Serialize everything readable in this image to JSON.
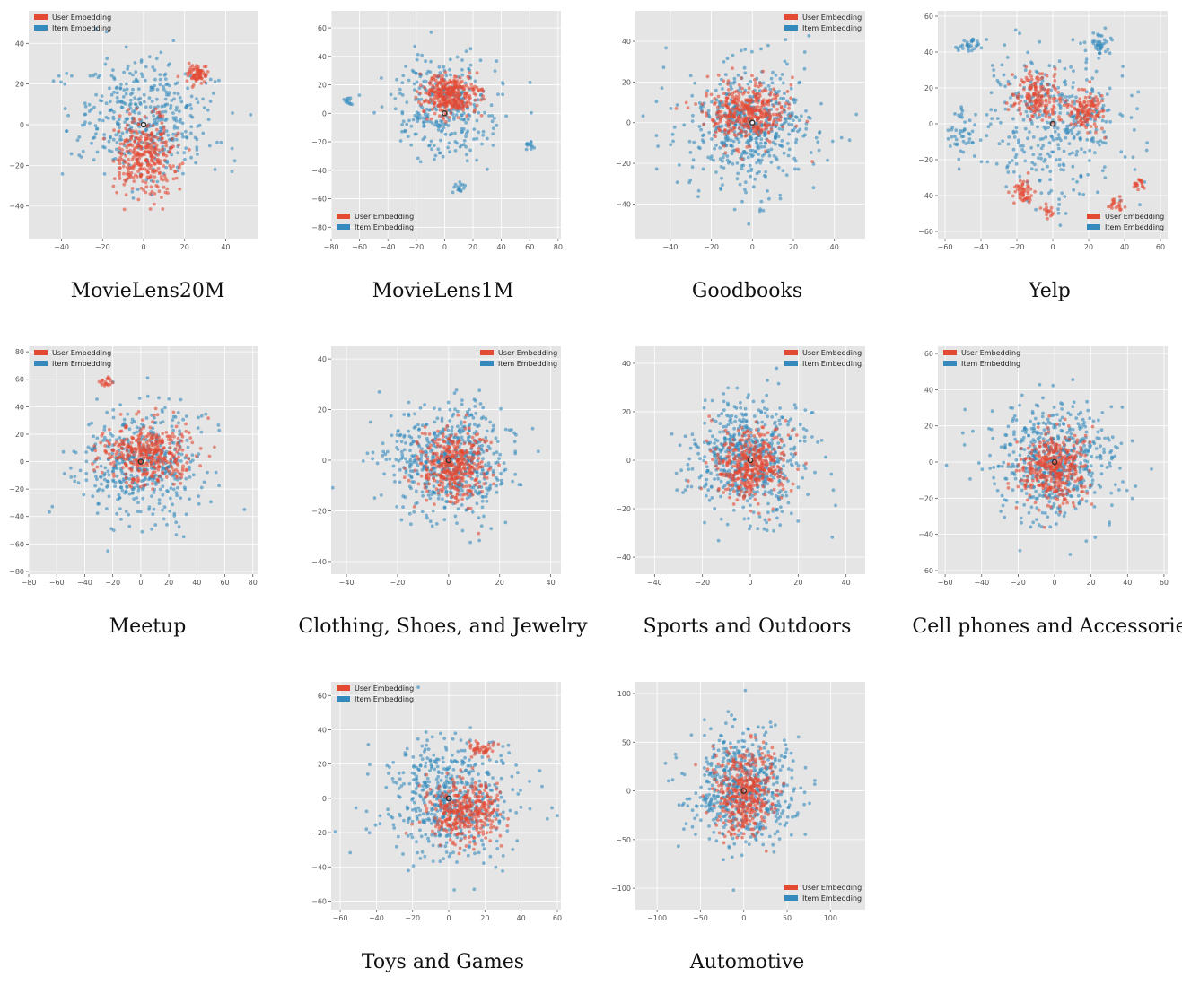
{
  "figure": {
    "colors": {
      "user": "#e24a33",
      "item": "#348abd",
      "background": "#e5e5e5",
      "grid": "#ffffff",
      "center": "#333333"
    },
    "legend_labels": {
      "user": "User Embedding",
      "item": "Item Embedding"
    }
  },
  "chart_data": [
    {
      "type": "scatter",
      "title": "MovieLens20M",
      "xlim": [
        -56,
        56
      ],
      "ylim": [
        -56,
        56
      ],
      "xticks": [
        -40,
        -20,
        0,
        20,
        40
      ],
      "yticks": [
        -40,
        -20,
        0,
        20,
        40
      ],
      "legend": "top-left",
      "grid": true,
      "series": [
        {
          "name": "User Embedding",
          "clusters": [
            {
              "center": [
                1,
                -15
              ],
              "spread": [
                12,
                15
              ],
              "count": 320
            },
            {
              "center": [
                26,
                24
              ],
              "spread": [
                5,
                4
              ],
              "count": 70
            }
          ]
        },
        {
          "name": "Item Embedding",
          "clusters": [
            {
              "center": [
                0,
                3
              ],
              "spread": [
                26,
                24
              ],
              "count": 420
            }
          ]
        }
      ]
    },
    {
      "type": "scatter",
      "title": "MovieLens1M",
      "xlim": [
        -80,
        82
      ],
      "ylim": [
        -88,
        72
      ],
      "xticks": [
        -80,
        -60,
        -40,
        -20,
        0,
        20,
        40,
        60,
        80
      ],
      "yticks": [
        -80,
        -60,
        -40,
        -20,
        0,
        20,
        40,
        60
      ],
      "legend": "bottom-left",
      "grid": true,
      "series": [
        {
          "name": "User Embedding",
          "clusters": [
            {
              "center": [
                3,
                13
              ],
              "spread": [
                15,
                12
              ],
              "count": 330
            }
          ]
        },
        {
          "name": "Item Embedding",
          "clusters": [
            {
              "center": [
                0,
                4
              ],
              "spread": [
                33,
                30
              ],
              "count": 300
            },
            {
              "center": [
                -68,
                8
              ],
              "spread": [
                3,
                3
              ],
              "count": 12
            },
            {
              "center": [
                10,
                -52
              ],
              "spread": [
                4,
                3
              ],
              "count": 15
            },
            {
              "center": [
                60,
                -22
              ],
              "spread": [
                3,
                3
              ],
              "count": 12
            }
          ]
        }
      ]
    },
    {
      "type": "scatter",
      "title": "Goodbooks",
      "xlim": [
        -57,
        55
      ],
      "ylim": [
        -57,
        55
      ],
      "xticks": [
        -40,
        -20,
        0,
        20,
        40
      ],
      "yticks": [
        -40,
        -20,
        0,
        20,
        40
      ],
      "legend": "top-right",
      "grid": true,
      "series": [
        {
          "name": "User Embedding",
          "clusters": [
            {
              "center": [
                -3,
                6
              ],
              "spread": [
                16,
                12
              ],
              "count": 380
            }
          ]
        },
        {
          "name": "Item Embedding",
          "clusters": [
            {
              "center": [
                0,
                -2
              ],
              "spread": [
                26,
                24
              ],
              "count": 520
            }
          ]
        }
      ]
    },
    {
      "type": "scatter",
      "title": "Yelp",
      "xlim": [
        -64,
        64
      ],
      "ylim": [
        -64,
        63
      ],
      "xticks": [
        -60,
        -40,
        -20,
        0,
        20,
        40,
        60
      ],
      "yticks": [
        -60,
        -40,
        -20,
        0,
        20,
        40,
        60
      ],
      "legend": "bottom-right",
      "grid": true,
      "series": [
        {
          "name": "User Embedding",
          "clusters": [
            {
              "center": [
                -8,
                15
              ],
              "spread": [
                10,
                10
              ],
              "count": 160
            },
            {
              "center": [
                18,
                8
              ],
              "spread": [
                8,
                9
              ],
              "count": 120
            },
            {
              "center": [
                -17,
                -38
              ],
              "spread": [
                5,
                5
              ],
              "count": 50
            },
            {
              "center": [
                35,
                -45
              ],
              "spread": [
                3,
                3
              ],
              "count": 20
            },
            {
              "center": [
                -3,
                -50
              ],
              "spread": [
                3,
                3
              ],
              "count": 15
            },
            {
              "center": [
                48,
                -33
              ],
              "spread": [
                3,
                3
              ],
              "count": 18
            }
          ]
        },
        {
          "name": "Item Embedding",
          "clusters": [
            {
              "center": [
                0,
                0
              ],
              "spread": [
                34,
                32
              ],
              "count": 380
            },
            {
              "center": [
                25,
                45
              ],
              "spread": [
                6,
                5
              ],
              "count": 40
            },
            {
              "center": [
                -45,
                44
              ],
              "spread": [
                6,
                3
              ],
              "count": 30
            },
            {
              "center": [
                -52,
                -5
              ],
              "spread": [
                6,
                10
              ],
              "count": 40
            }
          ]
        }
      ]
    },
    {
      "type": "scatter",
      "title": "Meetup",
      "xlim": [
        -80,
        84
      ],
      "ylim": [
        -82,
        84
      ],
      "xticks": [
        -80,
        -60,
        -40,
        -20,
        0,
        20,
        40,
        60,
        80
      ],
      "yticks": [
        -80,
        -60,
        -40,
        -20,
        0,
        20,
        40,
        60,
        80
      ],
      "legend": "top-left",
      "grid": true,
      "series": [
        {
          "name": "User Embedding",
          "clusters": [
            {
              "center": [
                5,
                5
              ],
              "spread": [
                26,
                18
              ],
              "count": 380
            },
            {
              "center": [
                -25,
                58
              ],
              "spread": [
                4,
                3
              ],
              "count": 18
            }
          ]
        },
        {
          "name": "Item Embedding",
          "clusters": [
            {
              "center": [
                0,
                -2
              ],
              "spread": [
                36,
                34
              ],
              "count": 450
            }
          ]
        }
      ]
    },
    {
      "type": "scatter",
      "title": "Clothing, Shoes, and Jewelry",
      "xlim": [
        -46,
        44
      ],
      "ylim": [
        -45,
        45
      ],
      "xticks": [
        -40,
        -20,
        0,
        20,
        40
      ],
      "yticks": [
        -40,
        -20,
        0,
        20,
        40
      ],
      "legend": "top-right",
      "grid": true,
      "series": [
        {
          "name": "User Embedding",
          "clusters": [
            {
              "center": [
                2,
                -2
              ],
              "spread": [
                11,
                11
              ],
              "count": 380
            }
          ]
        },
        {
          "name": "Item Embedding",
          "clusters": [
            {
              "center": [
                0,
                0
              ],
              "spread": [
                20,
                17
              ],
              "count": 560
            }
          ]
        }
      ]
    },
    {
      "type": "scatter",
      "title": "Sports and Outdoors",
      "xlim": [
        -48,
        48
      ],
      "ylim": [
        -47,
        47
      ],
      "xticks": [
        -40,
        -20,
        0,
        20,
        40
      ],
      "yticks": [
        -40,
        -20,
        0,
        20,
        40
      ],
      "legend": "top-right",
      "grid": true,
      "series": [
        {
          "name": "User Embedding",
          "clusters": [
            {
              "center": [
                0,
                -2
              ],
              "spread": [
                12,
                12
              ],
              "count": 380
            }
          ]
        },
        {
          "name": "Item Embedding",
          "clusters": [
            {
              "center": [
                0,
                0
              ],
              "spread": [
                21,
                19
              ],
              "count": 560
            }
          ]
        }
      ]
    },
    {
      "type": "scatter",
      "title": "Cell phones and Accessorie",
      "xlim": [
        -64,
        62
      ],
      "ylim": [
        -62,
        64
      ],
      "xticks": [
        -60,
        -40,
        -20,
        0,
        20,
        40,
        60
      ],
      "yticks": [
        -60,
        -40,
        -20,
        0,
        20,
        40,
        60
      ],
      "legend": "top-left",
      "grid": true,
      "series": [
        {
          "name": "User Embedding",
          "clusters": [
            {
              "center": [
                0,
                -4
              ],
              "spread": [
                15,
                15
              ],
              "count": 380
            }
          ]
        },
        {
          "name": "Item Embedding",
          "clusters": [
            {
              "center": [
                0,
                0
              ],
              "spread": [
                27,
                26
              ],
              "count": 560
            }
          ]
        }
      ]
    },
    {
      "type": "scatter",
      "title": "Toys and Games",
      "xlim": [
        -65,
        62
      ],
      "ylim": [
        -65,
        68
      ],
      "xticks": [
        -60,
        -40,
        -20,
        0,
        20,
        40,
        60
      ],
      "yticks": [
        -60,
        -40,
        -20,
        0,
        20,
        40,
        60
      ],
      "legend": "top-left",
      "grid": true,
      "series": [
        {
          "name": "User Embedding",
          "clusters": [
            {
              "center": [
                8,
                -8
              ],
              "spread": [
                17,
                14
              ],
              "count": 350
            },
            {
              "center": [
                18,
                30
              ],
              "spread": [
                6,
                4
              ],
              "count": 40
            }
          ]
        },
        {
          "name": "Item Embedding",
          "clusters": [
            {
              "center": [
                0,
                0
              ],
              "spread": [
                29,
                28
              ],
              "count": 540
            }
          ]
        }
      ]
    },
    {
      "type": "scatter",
      "title": "Automotive",
      "xlim": [
        -125,
        140
      ],
      "ylim": [
        -122,
        112
      ],
      "xticks": [
        -100,
        -50,
        0,
        50,
        100
      ],
      "yticks": [
        -100,
        -50,
        0,
        50,
        100
      ],
      "legend": "bottom-right",
      "grid": true,
      "series": [
        {
          "name": "User Embedding",
          "clusters": [
            {
              "center": [
                0,
                0
              ],
              "spread": [
                28,
                34
              ],
              "count": 380
            }
          ]
        },
        {
          "name": "Item Embedding",
          "clusters": [
            {
              "center": [
                0,
                0
              ],
              "spread": [
                50,
                46
              ],
              "count": 560
            }
          ]
        }
      ]
    }
  ]
}
